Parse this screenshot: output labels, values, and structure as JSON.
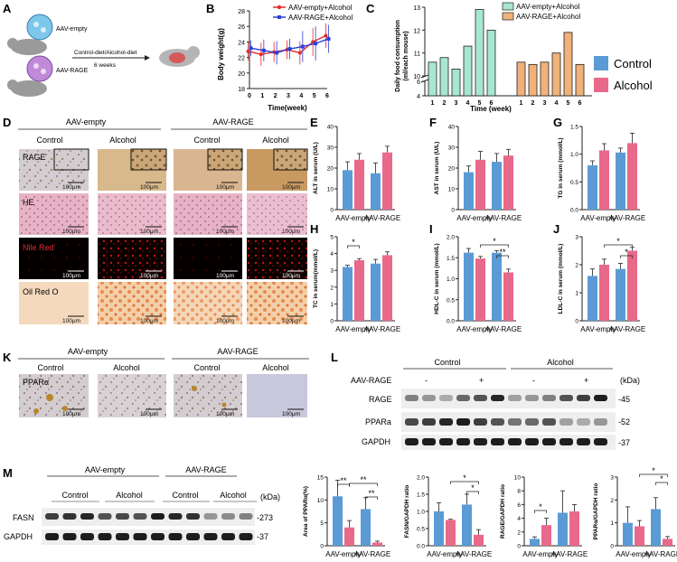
{
  "panels": {
    "A": "A",
    "B": "B",
    "C": "C",
    "D": "D",
    "E": "E",
    "F": "F",
    "G": "G",
    "H": "H",
    "I": "I",
    "J": "J",
    "K": "K",
    "L": "L",
    "M": "M"
  },
  "panelA": {
    "label1": "AAV-empty",
    "label2": "AAV-RAGE",
    "diet": "Control-diet/Alcohol-diet",
    "duration": "6 weeks"
  },
  "colors": {
    "control": "#5b9bd5",
    "alcohol": "#e8698a",
    "red": "#e8292b",
    "blue": "#2c3fd6",
    "ragefill": "#f0b27a",
    "emptyfill": "#a8e6cf"
  },
  "legend": {
    "control": "Control",
    "alcohol": "Alcohol"
  },
  "groups": {
    "empty": "AAV-empty",
    "rage": "AAV-RAGE"
  },
  "sig": {
    "one": "*",
    "two": "**"
  },
  "panelB": {
    "legend": [
      "AAV-empty+Alcohol",
      "AAV-RAGE+Alcohol"
    ],
    "ylabel": "Body weight(g)",
    "xlabel": "Time(week)",
    "yticks": [
      "18",
      "20",
      "22",
      "24",
      "26",
      "28"
    ],
    "xticks": [
      "0",
      "1",
      "2",
      "3",
      "4",
      "5",
      "6"
    ],
    "ylim": [
      18,
      28
    ],
    "series": [
      {
        "name": "AAV-empty+Alcohol",
        "values": [
          22.8,
          22.4,
          22.7,
          23.0,
          22.6,
          24.0,
          24.8
        ]
      },
      {
        "name": "AAV-RAGE+Alcohol",
        "values": [
          23.2,
          22.9,
          22.6,
          23.1,
          23.4,
          23.8,
          24.4
        ]
      }
    ]
  },
  "panelC": {
    "legend": [
      "AAV-empty+Alcohol",
      "AAV-RAGE+Alcohol"
    ],
    "ylabel": "Daily food consumption",
    "ylabel2": "(ml/each mouse)",
    "xlabel": "Time (week)",
    "yticks": [
      "4",
      "6",
      "10",
      "11",
      "12",
      "13"
    ],
    "xticks": [
      "1",
      "2",
      "3",
      "4",
      "5",
      "6"
    ],
    "empty": [
      10.6,
      10.8,
      10.3,
      11.3,
      12.9,
      12.0
    ],
    "rage": [
      10.6,
      10.5,
      10.6,
      11.0,
      11.9,
      10.5
    ]
  },
  "panelD": {
    "groups": [
      "AAV-empty",
      "AAV-RAGE"
    ],
    "cols": [
      "Control",
      "Alcohol",
      "Control",
      "Alcohol"
    ],
    "rows": [
      "RAGE",
      "HE",
      "Nile Red",
      "Oil Red O"
    ],
    "scale": "100μm"
  },
  "bars": [
    {
      "id": "E",
      "ylabel": "ALT in serum (U/L)",
      "yticks": [
        "0",
        "10",
        "20",
        "30",
        "40"
      ],
      "ymax": 40,
      "values": [
        19,
        24,
        17.5,
        27.5
      ],
      "errors": [
        4,
        3,
        5,
        3
      ]
    },
    {
      "id": "F",
      "ylabel": "AST in serum (U/L)",
      "yticks": [
        "0",
        "10",
        "20",
        "30",
        "40"
      ],
      "ymax": 40,
      "values": [
        18,
        24,
        23,
        26
      ],
      "errors": [
        3,
        4,
        4,
        3
      ]
    },
    {
      "id": "G",
      "ylabel": "TG in serum (mmol/L)",
      "yticks": [
        "0.0",
        "0.5",
        "1.0",
        "1.5"
      ],
      "ymax": 1.5,
      "values": [
        0.8,
        1.07,
        1.03,
        1.2
      ],
      "errors": [
        0.08,
        0.12,
        0.08,
        0.18
      ]
    },
    {
      "id": "H",
      "ylabel": "TC in serum(mmol/L)",
      "yticks": [
        "0",
        "1",
        "2",
        "3",
        "4",
        "5"
      ],
      "ymax": 5,
      "values": [
        3.2,
        3.6,
        3.4,
        3.9
      ],
      "errors": [
        0.1,
        0.1,
        0.25,
        0.2
      ]
    },
    {
      "id": "I",
      "ylabel": "HDL-C in serum (mmol/L)",
      "yticks": [
        "0.0",
        "0.5",
        "1.0",
        "1.5",
        "2.0"
      ],
      "ymax": 2.0,
      "values": [
        1.62,
        1.48,
        1.62,
        1.15
      ],
      "errors": [
        0.1,
        0.05,
        0.05,
        0.08
      ]
    },
    {
      "id": "J",
      "ylabel": "LDL-C in serum (mmol/L)",
      "yticks": [
        "0",
        "1",
        "2",
        "3"
      ],
      "ymax": 3,
      "values": [
        1.6,
        2.0,
        1.85,
        2.5
      ],
      "errors": [
        0.25,
        0.2,
        0.2,
        0.12
      ]
    },
    {
      "id": "M1",
      "ylabel": "Area of PPARα(%)",
      "yticks": [
        "0",
        "5",
        "10",
        "15"
      ],
      "ymax": 15,
      "values": [
        10.8,
        4.0,
        8.0,
        0.7
      ],
      "errors": [
        3.5,
        1.5,
        2.5,
        0.3
      ]
    },
    {
      "id": "M2",
      "ylabel": "FASN/GAPDH ratio",
      "yticks": [
        "0.0",
        "0.5",
        "1.0",
        "1.5",
        "2.0"
      ],
      "ymax": 2.0,
      "values": [
        1.0,
        0.75,
        1.2,
        0.32
      ],
      "errors": [
        0.25,
        0.02,
        0.3,
        0.15
      ]
    },
    {
      "id": "M3",
      "ylabel": "RAGE/GAPDH ratio",
      "yticks": [
        "0",
        "2",
        "4",
        "6",
        "8",
        "10"
      ],
      "ymax": 10,
      "values": [
        1.0,
        3.0,
        4.8,
        5.0
      ],
      "errors": [
        0.3,
        1.0,
        3.2,
        1.0
      ]
    },
    {
      "id": "M4",
      "ylabel": "PPARα/GAPDH ratio",
      "yticks": [
        "0",
        "1",
        "2",
        "3"
      ],
      "ymax": 3,
      "values": [
        1.0,
        0.85,
        1.6,
        0.3
      ],
      "errors": [
        0.7,
        0.25,
        0.5,
        0.1
      ]
    }
  ],
  "panelK": {
    "groups": [
      "AAV-empty",
      "AAV-RAGE"
    ],
    "cols": [
      "Control",
      "Alcohol"
    ],
    "row": "PPARα",
    "scale": "100μm"
  },
  "panelL": {
    "groups": [
      "Control",
      "Alcohol"
    ],
    "rowlabel": "AAV-RAGE",
    "minus": "-",
    "plus": "+",
    "kda": "(kDa)",
    "proteins": [
      "RAGE",
      "PPARa",
      "GAPDH"
    ],
    "mw": [
      "-45",
      "-52",
      "-37"
    ]
  },
  "panelM": {
    "groups": [
      "AAV-empty",
      "AAV-RAGE"
    ],
    "subs": [
      "Control",
      "Alcohol"
    ],
    "kda": "(kDa)",
    "proteins": [
      "FASN",
      "GAPDH"
    ],
    "mw": [
      "-273",
      "-37"
    ]
  }
}
